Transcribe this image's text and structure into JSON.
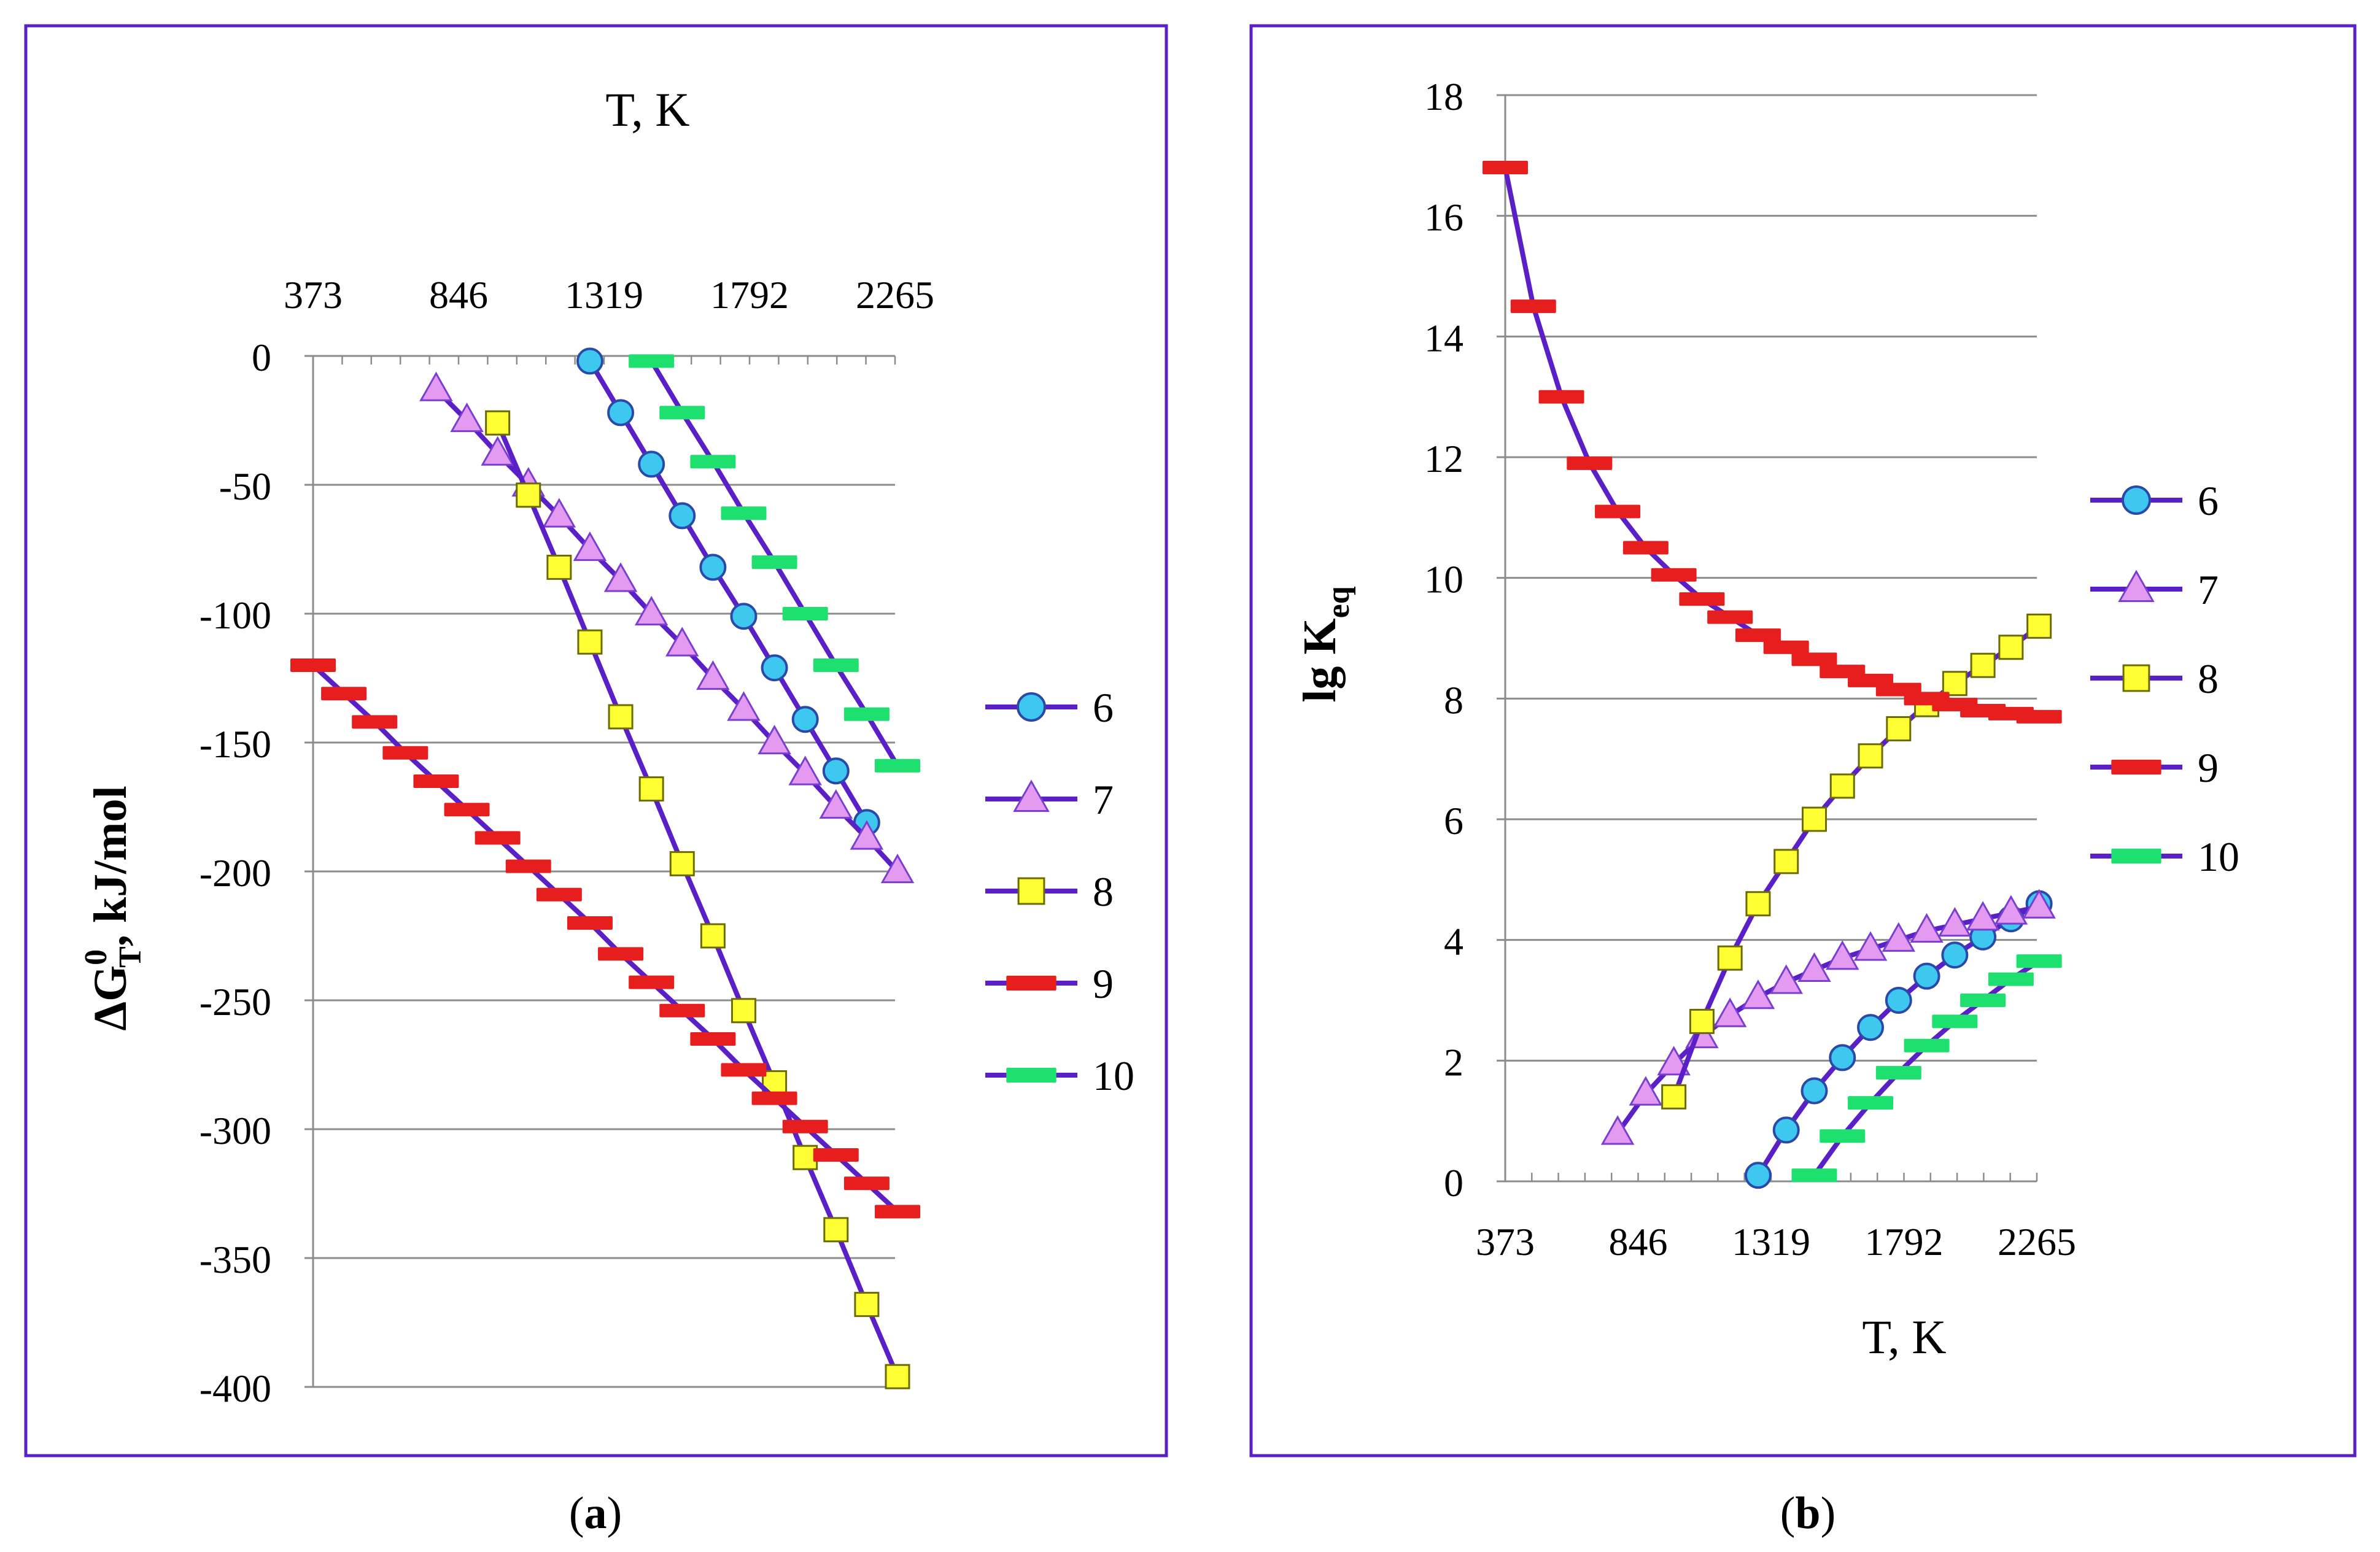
{
  "colors": {
    "frame": "#5b1fc8",
    "grid": "#8c8c8c",
    "axis": "#8c8c8c",
    "line": "#5b1fc8",
    "series6": "#3ec8f0",
    "series7": "#e49af0",
    "series8": "#ffff33",
    "series9": "#e61e1e",
    "series10": "#1ee06e",
    "markerStroke": "#2a49a8"
  },
  "legend": [
    "6",
    "7",
    "8",
    "9",
    "10"
  ],
  "chart_data": [
    {
      "id": "a",
      "type": "line",
      "caption_open": "(",
      "caption": "a",
      "caption_close": ")",
      "xlabel": "T, K",
      "ylabel_main": "ΔG",
      "ylabel_sup": "0",
      "ylabel_sub": "T",
      "ylabel_rest": ", kJ/mol",
      "xlim": [
        373,
        2265
      ],
      "ylim": [
        -400,
        0
      ],
      "x_ticks": [
        373,
        846,
        1319,
        1792,
        2265
      ],
      "y_ticks": [
        0,
        -50,
        -100,
        -150,
        -200,
        -250,
        -300,
        -350,
        -400
      ],
      "x_axis_position": "top",
      "grid": "horizontal",
      "legend_position": "right",
      "series": [
        {
          "name": "6",
          "marker": "circle",
          "x": [
            1273,
            1373,
            1473,
            1573,
            1673,
            1773,
            1873,
            1973,
            2073,
            2173
          ],
          "y": [
            -2,
            -22,
            -42,
            -62,
            -82,
            -101,
            -121,
            -141,
            -161,
            -181
          ]
        },
        {
          "name": "7",
          "marker": "triangle",
          "x": [
            773,
            873,
            973,
            1073,
            1173,
            1273,
            1373,
            1473,
            1573,
            1673,
            1773,
            1873,
            1973,
            2073,
            2173,
            2273
          ],
          "y": [
            -13,
            -25,
            -38,
            -50,
            -62,
            -75,
            -87,
            -100,
            -112,
            -125,
            -137,
            -150,
            -162,
            -175,
            -187,
            -200
          ]
        },
        {
          "name": "8",
          "marker": "square",
          "x": [
            973,
            1073,
            1173,
            1273,
            1373,
            1473,
            1573,
            1673,
            1773,
            1873,
            1973,
            2073,
            2173,
            2273
          ],
          "y": [
            -26,
            -54,
            -82,
            -111,
            -140,
            -168,
            -197,
            -225,
            -254,
            -282,
            -311,
            -339,
            -368,
            -396
          ]
        },
        {
          "name": "9",
          "marker": "dash",
          "x": [
            373,
            473,
            573,
            673,
            773,
            873,
            973,
            1073,
            1173,
            1273,
            1373,
            1473,
            1573,
            1673,
            1773,
            1873,
            1973,
            2073,
            2173,
            2273
          ],
          "y": [
            -120,
            -131,
            -142,
            -154,
            -165,
            -176,
            -187,
            -198,
            -209,
            -220,
            -232,
            -243,
            -254,
            -265,
            -277,
            -288,
            -299,
            -310,
            -321,
            -332
          ]
        },
        {
          "name": "10",
          "marker": "dash",
          "x": [
            1473,
            1573,
            1673,
            1773,
            1873,
            1973,
            2073,
            2173,
            2273
          ],
          "y": [
            -2,
            -22,
            -41,
            -61,
            -80,
            -100,
            -120,
            -139,
            -159
          ]
        }
      ]
    },
    {
      "id": "b",
      "type": "line",
      "caption_open": "(",
      "caption": "b",
      "caption_close": ")",
      "xlabel": "T, K",
      "ylabel_main": "lg K",
      "ylabel_sub": "eq",
      "xlim": [
        373,
        2265
      ],
      "ylim": [
        0,
        18
      ],
      "x_ticks": [
        373,
        846,
        1319,
        1792,
        2265
      ],
      "y_ticks": [
        0,
        2,
        4,
        6,
        8,
        10,
        12,
        14,
        16,
        18
      ],
      "x_axis_position": "bottom",
      "grid": "horizontal",
      "legend_position": "right",
      "series": [
        {
          "name": "6",
          "marker": "circle",
          "x": [
            1273,
            1373,
            1473,
            1573,
            1673,
            1773,
            1873,
            1973,
            2073,
            2173,
            2273
          ],
          "y": [
            0.1,
            0.85,
            1.5,
            2.05,
            2.55,
            3.0,
            3.4,
            3.75,
            4.05,
            4.35,
            4.6
          ]
        },
        {
          "name": "7",
          "marker": "triangle",
          "x": [
            773,
            873,
            973,
            1073,
            1173,
            1273,
            1373,
            1473,
            1573,
            1673,
            1773,
            1873,
            1973,
            2073,
            2173,
            2273
          ],
          "y": [
            0.8,
            1.45,
            1.95,
            2.4,
            2.75,
            3.05,
            3.3,
            3.5,
            3.7,
            3.85,
            4.0,
            4.15,
            4.25,
            4.35,
            4.45,
            4.55
          ]
        },
        {
          "name": "8",
          "marker": "square",
          "x": [
            973,
            1073,
            1173,
            1273,
            1373,
            1473,
            1573,
            1673,
            1773,
            1873,
            1973,
            2073,
            2173,
            2273
          ],
          "y": [
            1.4,
            2.65,
            3.7,
            4.6,
            5.3,
            6.0,
            6.55,
            7.05,
            7.5,
            7.9,
            8.25,
            8.55,
            8.85,
            9.2
          ]
        },
        {
          "name": "9",
          "marker": "dash",
          "x": [
            373,
            473,
            573,
            673,
            773,
            873,
            973,
            1073,
            1173,
            1273,
            1373,
            1473,
            1573,
            1673,
            1773,
            1873,
            1973,
            2073,
            2173,
            2273
          ],
          "y": [
            16.8,
            14.5,
            13.0,
            11.9,
            11.1,
            10.5,
            10.05,
            9.65,
            9.35,
            9.05,
            8.85,
            8.65,
            8.45,
            8.3,
            8.15,
            8.0,
            7.9,
            7.8,
            7.75,
            7.7
          ]
        },
        {
          "name": "10",
          "marker": "dash",
          "x": [
            1473,
            1573,
            1673,
            1773,
            1873,
            1973,
            2073,
            2173,
            2273
          ],
          "y": [
            0.1,
            0.75,
            1.3,
            1.8,
            2.25,
            2.65,
            3.0,
            3.35,
            3.65
          ]
        }
      ]
    }
  ]
}
